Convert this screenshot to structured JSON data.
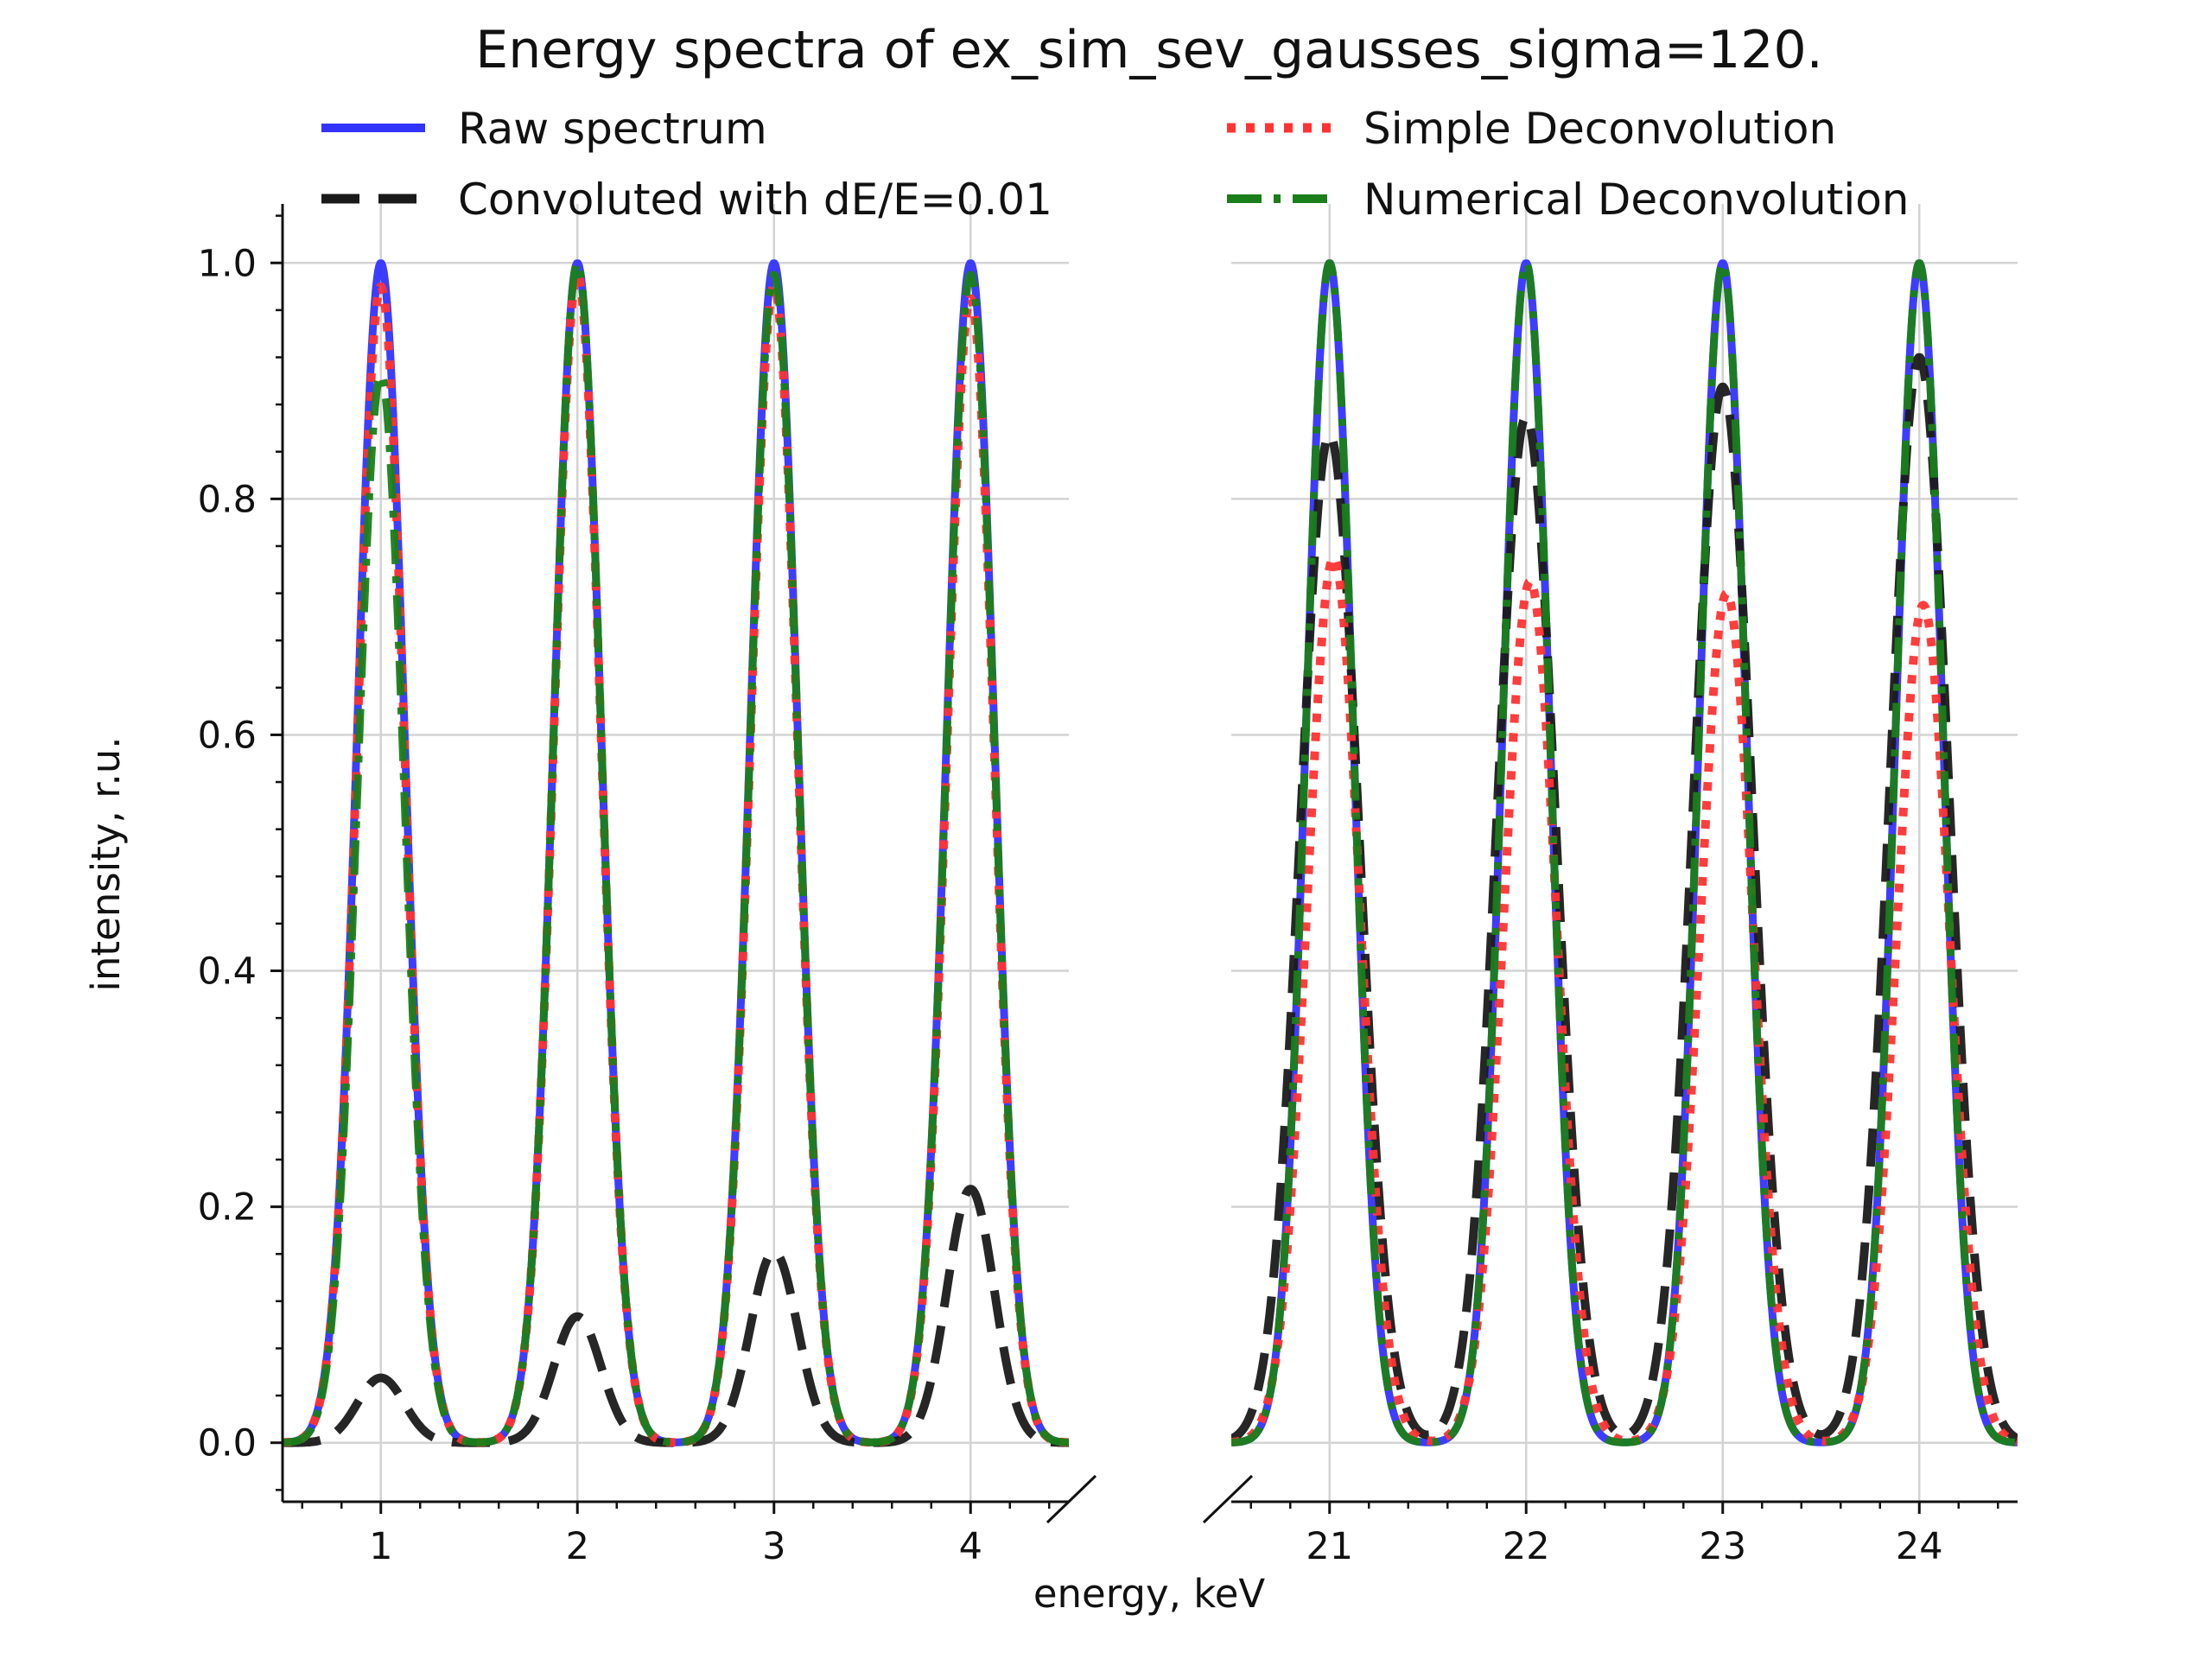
{
  "chart_data": {
    "type": "line",
    "title": "Energy spectra of ex_sim_sev_gausses_sigma=120.",
    "xlabel": "energy, keV",
    "ylabel": "intensity, r.u.",
    "ylim": [
      -0.05,
      1.05
    ],
    "yticks": [
      "0.0",
      "0.2",
      "0.4",
      "0.6",
      "0.8",
      "1.0"
    ],
    "grid": true,
    "legend_position": "top",
    "broken_x_axis": true,
    "panels": [
      {
        "xlim": [
          0.5,
          4.5
        ],
        "xticks": [
          "1",
          "2",
          "3",
          "4"
        ]
      },
      {
        "xlim": [
          20.5,
          24.5
        ],
        "xticks": [
          "21",
          "22",
          "23",
          "24"
        ]
      }
    ],
    "peak_centers_keV": [
      1,
      2,
      3,
      4,
      21,
      22,
      23,
      24
    ],
    "series": [
      {
        "name": "Raw spectrum",
        "color": "#3333ff",
        "style": "solid",
        "peak_values": [
          1.0,
          1.0,
          1.0,
          1.0,
          1.0,
          1.0,
          1.0,
          1.0
        ]
      },
      {
        "name": "Convoluted with dE/E=0.01",
        "color": "#1a1a1a",
        "style": "dashed",
        "peak_values": [
          0.055,
          0.107,
          0.162,
          0.215,
          0.855,
          0.87,
          0.895,
          0.92
        ]
      },
      {
        "name": "Simple Deconvolution",
        "color": "#ff3333",
        "style": "dotted",
        "peak_values": [
          0.98,
          0.99,
          0.98,
          0.97,
          0.75,
          0.73,
          0.72,
          0.71
        ]
      },
      {
        "name": "Numerical Deconvolution",
        "color": "#1a7f1a",
        "style": "dashdot",
        "peak_values": [
          0.905,
          1.0,
          0.99,
          0.99,
          1.0,
          1.0,
          1.0,
          1.0
        ]
      }
    ]
  }
}
